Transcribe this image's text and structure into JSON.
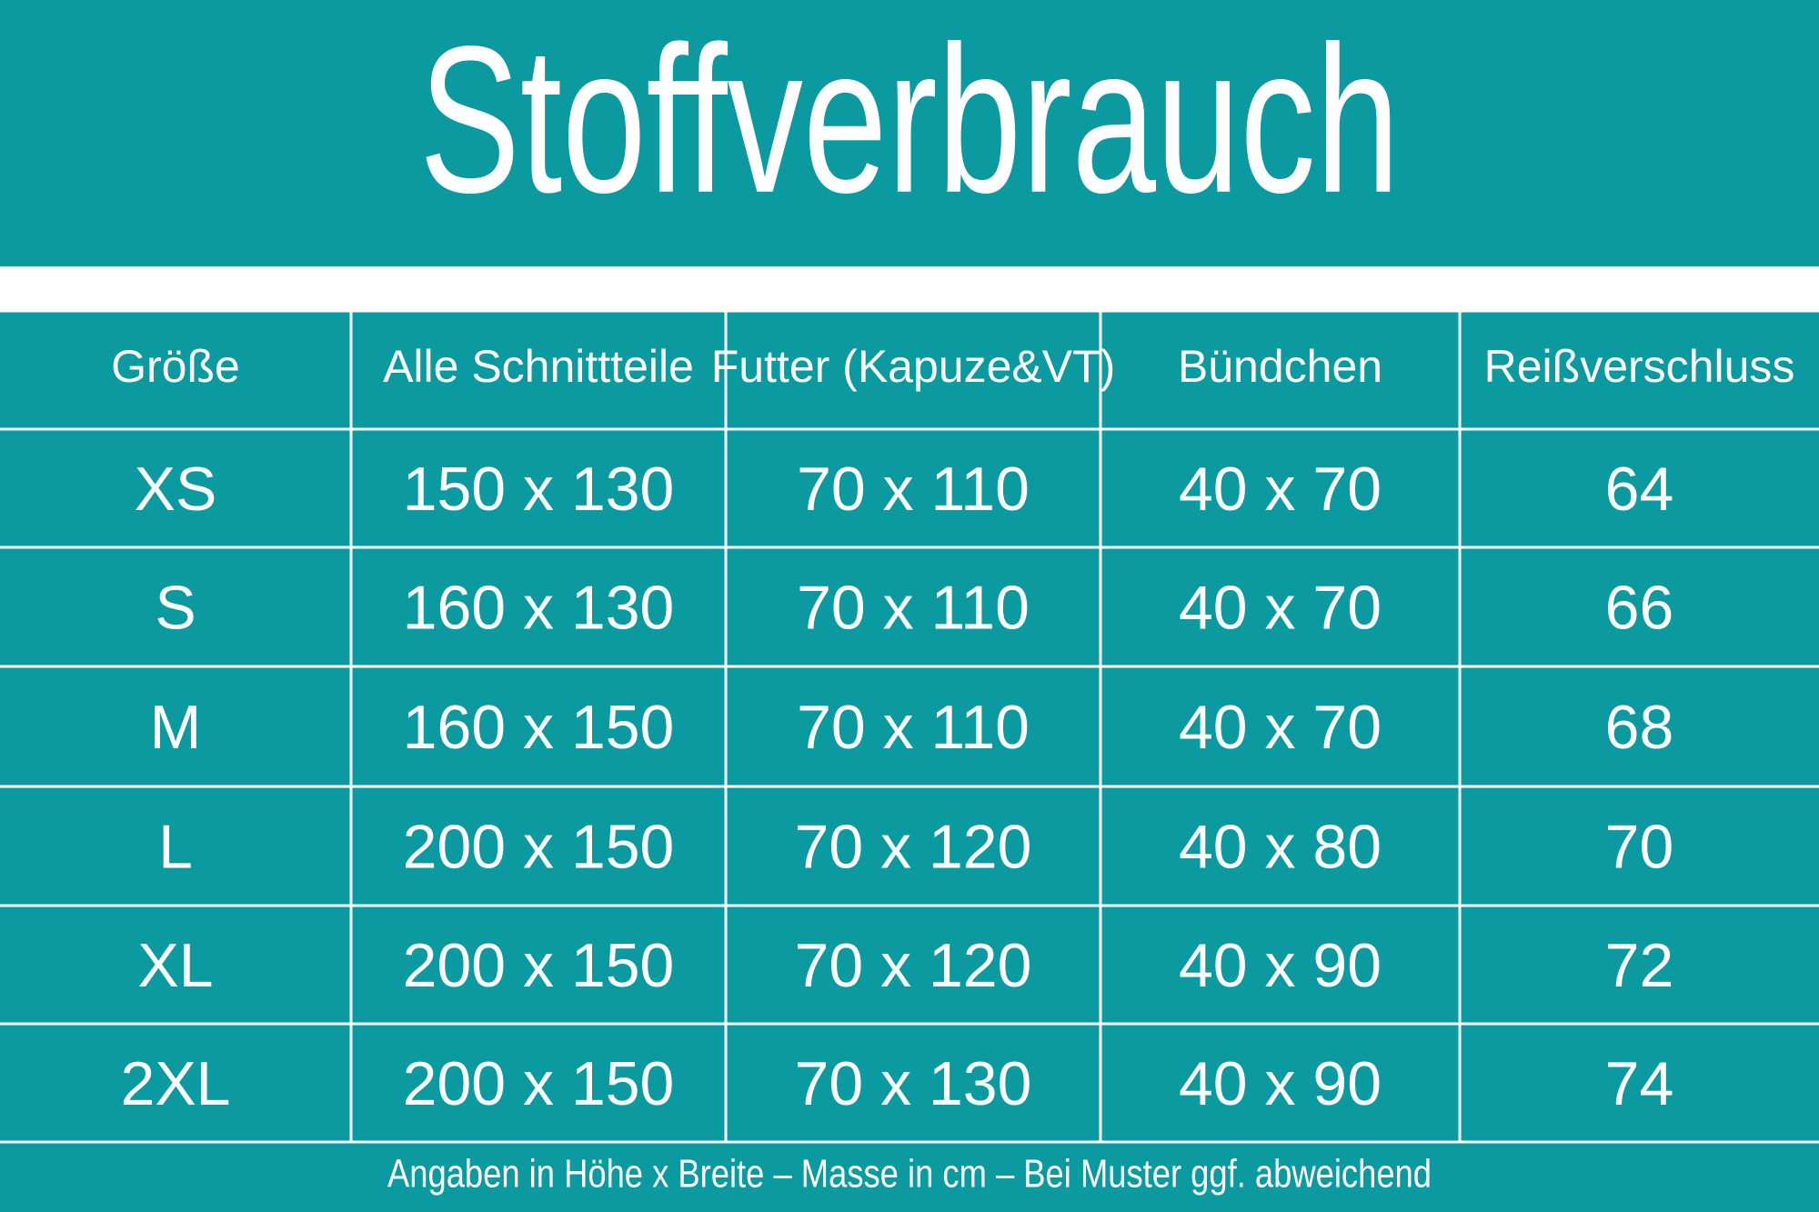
{
  "header": {
    "title": "Stoffverbrauch"
  },
  "table": {
    "columns": [
      "Größe",
      "Alle Schnittteile",
      "Futter (Kapuze&VT)",
      "Bündchen",
      "Reißverschluss"
    ],
    "rows": [
      [
        "XS",
        "150 x 130",
        "70 x 110",
        "40 x 70",
        "64"
      ],
      [
        "S",
        "160 x 130",
        "70 x 110",
        "40 x 70",
        "66"
      ],
      [
        "M",
        "160 x 150",
        "70 x 110",
        "40 x 70",
        "68"
      ],
      [
        "L",
        "200 x 150",
        "70 x 120",
        "40 x 80",
        "70"
      ],
      [
        "XL",
        "200 x 150",
        "70 x 120",
        "40 x 90",
        "72"
      ],
      [
        "2XL",
        "200 x 150",
        "70 x 130",
        "40 x 90",
        "74"
      ]
    ]
  },
  "footer": "Angaben in Höhe x Breite – Masse in cm – Bei Muster ggf. abweichend"
}
